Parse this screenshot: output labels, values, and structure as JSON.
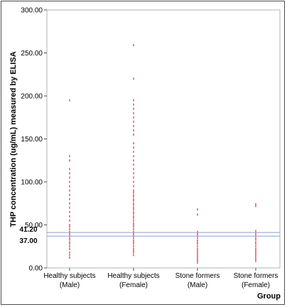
{
  "chart_data": {
    "type": "scatter",
    "xlabel": "Group",
    "ylabel": "THP concentration (ug/mL) measured by ELISA",
    "ylim": [
      0,
      300
    ],
    "yticks": [
      "0.00",
      "50.00",
      "100.00",
      "150.00",
      "200.00",
      "250.00",
      "300.00"
    ],
    "categories": [
      [
        "Healthy subjects",
        "(Male)"
      ],
      [
        "Healthy subjects",
        "(Female)"
      ],
      [
        "Stone formers",
        "(Male)"
      ],
      [
        "Stone formers",
        "(Female)"
      ]
    ],
    "reference_lines": [
      {
        "label": "41.20",
        "value": 41.2
      },
      {
        "label": "37.00",
        "value": 37.0
      }
    ],
    "point_color": "#e8808a",
    "ref_line_color": "#8f9fc9",
    "series": [
      {
        "category": 0,
        "values": [
          12,
          15,
          18,
          22,
          25,
          28,
          30,
          33,
          35,
          38,
          40,
          42,
          45,
          48,
          50,
          55,
          60,
          65,
          70,
          75,
          80,
          85,
          90,
          95,
          100,
          105,
          110,
          115,
          125,
          130,
          195
        ]
      },
      {
        "category": 1,
        "values": [
          15,
          18,
          20,
          22,
          25,
          28,
          30,
          32,
          35,
          38,
          40,
          42,
          45,
          48,
          50,
          52,
          55,
          58,
          60,
          63,
          65,
          68,
          70,
          73,
          75,
          78,
          80,
          83,
          85,
          88,
          90,
          95,
          100,
          105,
          110,
          115,
          120,
          125,
          130,
          135,
          140,
          145,
          155,
          160,
          165,
          170,
          175,
          180,
          185,
          190,
          195,
          220,
          259
        ]
      },
      {
        "category": 2,
        "values": [
          6,
          8,
          10,
          12,
          14,
          16,
          18,
          20,
          22,
          25,
          28,
          30,
          32,
          35,
          38,
          40,
          42,
          62,
          68
        ]
      },
      {
        "category": 3,
        "values": [
          8,
          10,
          12,
          14,
          16,
          18,
          20,
          22,
          25,
          28,
          30,
          33,
          35,
          38,
          40,
          43,
          72,
          74
        ]
      }
    ]
  }
}
